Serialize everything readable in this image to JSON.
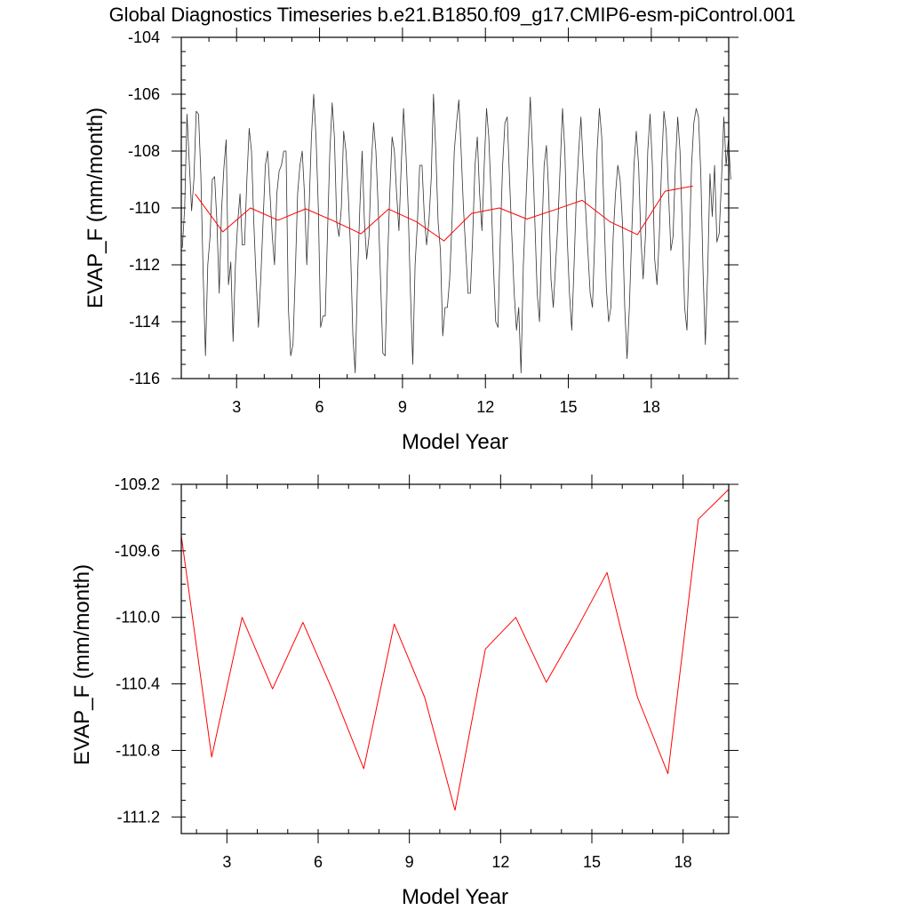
{
  "title": "Global Diagnostics Timeseries b.e21.B1850.f09_g17.CMIP6-esm-piControl.001",
  "colors": {
    "monthly": "#333333",
    "annual": "#ff0000",
    "axis": "#000000"
  },
  "chart_data": [
    {
      "type": "line",
      "xlabel": "Model Year",
      "ylabel": "EVAP_F (mm/month)",
      "xlim": [
        1,
        20.8
      ],
      "ylim": [
        -116,
        -104
      ],
      "xticks": [
        3,
        6,
        9,
        12,
        15,
        18
      ],
      "xtick_labels": [
        "3",
        "6",
        "9",
        "12",
        "15",
        "18"
      ],
      "yticks": [
        -116,
        -114,
        -112,
        -110,
        -108,
        -106,
        -104
      ],
      "ytick_labels": [
        "-116",
        "-114",
        "-112",
        "-110",
        "-108",
        "-106",
        "-104"
      ],
      "series": [
        {
          "key": "monthly",
          "x_start": 1.04,
          "x_step": 0.08333,
          "values": [
            -111.4,
            -110.0,
            -106.7,
            -108.4,
            -110.1,
            -109.0,
            -106.6,
            -106.7,
            -108.8,
            -112.3,
            -115.2,
            -112.0,
            -111.0,
            -109.0,
            -108.9,
            -110.5,
            -113.0,
            -110.1,
            -108.6,
            -107.6,
            -112.7,
            -111.9,
            -114.7,
            -112.0,
            -110.5,
            -109.5,
            -111.3,
            -111.3,
            -109.0,
            -107.2,
            -108.0,
            -110.5,
            -112.5,
            -114.2,
            -112.5,
            -110.5,
            -108.5,
            -108.0,
            -109.5,
            -111.0,
            -112.0,
            -109.5,
            -108.7,
            -108.5,
            -108.0,
            -108.0,
            -113.5,
            -115.2,
            -114.8,
            -112.3,
            -109.5,
            -108.5,
            -108.0,
            -109.5,
            -112.0,
            -110.0,
            -107.5,
            -106.0,
            -107.5,
            -110.0,
            -114.2,
            -113.8,
            -113.8,
            -110.8,
            -108.0,
            -106.3,
            -107.5,
            -110.5,
            -111.0,
            -110.0,
            -107.3,
            -108.0,
            -109.5,
            -111.5,
            -114.5,
            -115.8,
            -112.5,
            -110.0,
            -108.0,
            -110.5,
            -111.8,
            -111.0,
            -108.5,
            -107.0,
            -108.0,
            -110.0,
            -112.5,
            -115.1,
            -115.2,
            -112.0,
            -109.5,
            -107.5,
            -108.0,
            -109.5,
            -110.8,
            -108.5,
            -106.5,
            -108.0,
            -110.0,
            -113.0,
            -115.5,
            -112.0,
            -110.5,
            -108.5,
            -108.5,
            -110.3,
            -111.3,
            -110.5,
            -109.0,
            -106.0,
            -108.0,
            -110.5,
            -111.5,
            -114.5,
            -113.5,
            -113.5,
            -112.5,
            -110.5,
            -108.0,
            -107.0,
            -106.2,
            -108.0,
            -110.0,
            -111.5,
            -113.0,
            -113.0,
            -111.0,
            -108.5,
            -107.5,
            -109.5,
            -110.8,
            -108.5,
            -106.5,
            -107.5,
            -109.5,
            -112.0,
            -114.0,
            -114.2,
            -111.0,
            -108.5,
            -107.0,
            -106.8,
            -109.0,
            -111.0,
            -113.0,
            -114.3,
            -113.5,
            -115.8,
            -112.0,
            -110.0,
            -108.0,
            -106.1,
            -108.0,
            -110.5,
            -113.0,
            -114.0,
            -111.0,
            -108.5,
            -107.8,
            -109.5,
            -112.5,
            -113.5,
            -112.0,
            -110.5,
            -108.5,
            -106.5,
            -108.0,
            -111.0,
            -113.0,
            -114.3,
            -112.0,
            -109.5,
            -108.0,
            -106.8,
            -108.5,
            -110.0,
            -111.5,
            -113.0,
            -113.5,
            -111.0,
            -108.0,
            -106.5,
            -107.5,
            -110.2,
            -112.8,
            -114.0,
            -113.5,
            -111.0,
            -109.5,
            -108.5,
            -109.0,
            -110.5,
            -113.5,
            -115.3,
            -113.5,
            -111.0,
            -108.5,
            -107.3,
            -108.5,
            -111.0,
            -112.5,
            -111.0,
            -108.0,
            -106.7,
            -108.5,
            -111.8,
            -112.7,
            -111.0,
            -108.5,
            -106.6,
            -107.3,
            -109.5,
            -111.5,
            -111.0,
            -108.5,
            -106.8,
            -108.0,
            -110.8,
            -113.5,
            -114.3,
            -111.5,
            -108.5,
            -107.0,
            -106.5,
            -106.8,
            -108.8,
            -112.2,
            -114.8,
            -112.3,
            -108.8,
            -110.3,
            -108.5,
            -111.2,
            -110.9,
            -109.0,
            -106.8,
            -108.5,
            -107.6,
            -109.0
          ]
        },
        {
          "key": "annual",
          "x": [
            1.5,
            2.5,
            3.5,
            4.5,
            5.5,
            6.5,
            7.5,
            8.5,
            9.5,
            10.5,
            11.5,
            12.5,
            13.5,
            14.5,
            15.5,
            16.5,
            17.5,
            18.5,
            19.5
          ],
          "values": [
            -109.51,
            -110.84,
            -110.0,
            -110.43,
            -110.03,
            -110.45,
            -110.91,
            -110.04,
            -110.48,
            -111.16,
            -110.19,
            -110.0,
            -110.39,
            -110.07,
            -109.73,
            -110.48,
            -110.94,
            -109.41,
            -109.23
          ]
        }
      ]
    },
    {
      "type": "line",
      "xlabel": "Model Year",
      "ylabel": "EVAP_F (mm/month)",
      "xlim": [
        1.5,
        19.5
      ],
      "ylim": [
        -111.3,
        -109.2
      ],
      "xticks": [
        3,
        6,
        9,
        12,
        15,
        18
      ],
      "xtick_labels": [
        "3",
        "6",
        "9",
        "12",
        "15",
        "18"
      ],
      "yticks": [
        -111.2,
        -110.8,
        -110.4,
        -110.0,
        -109.6,
        -109.2
      ],
      "ytick_labels": [
        "-111.2",
        "-110.8",
        "-110.4",
        "-110.0",
        "-109.6",
        "-109.2"
      ],
      "series": [
        {
          "key": "annual",
          "x": [
            1.5,
            2.5,
            3.5,
            4.5,
            5.5,
            6.5,
            7.5,
            8.5,
            9.5,
            10.5,
            11.5,
            12.5,
            13.5,
            14.5,
            15.5,
            16.5,
            17.5,
            18.5,
            19.5
          ],
          "values": [
            -109.51,
            -110.84,
            -110.0,
            -110.43,
            -110.03,
            -110.45,
            -110.91,
            -110.04,
            -110.48,
            -111.16,
            -110.19,
            -110.0,
            -110.39,
            -110.07,
            -109.73,
            -110.48,
            -110.94,
            -109.41,
            -109.23
          ]
        }
      ]
    }
  ]
}
